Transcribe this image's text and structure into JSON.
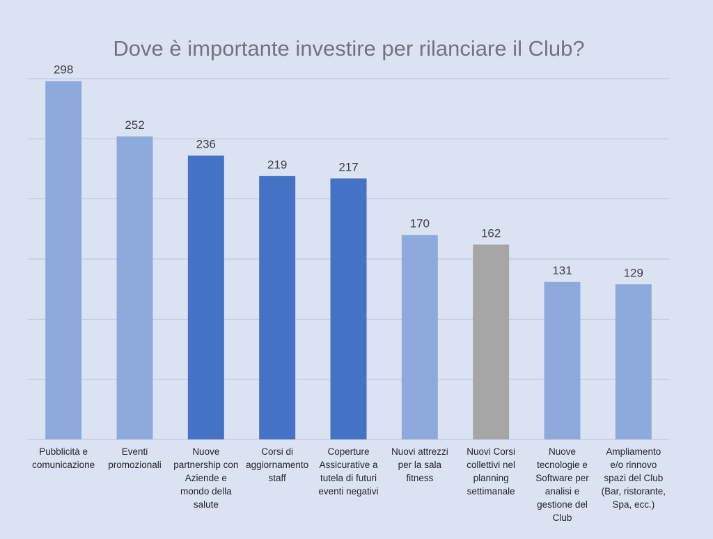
{
  "chart_data": {
    "type": "bar",
    "title": "Dove è importante investire per rilanciare il Club?",
    "xlabel": "",
    "ylabel": "",
    "ylim": [
      0,
      300
    ],
    "grid": true,
    "categories": [
      [
        "Pubblicità e",
        "comunicazione"
      ],
      [
        "Eventi",
        "promozionali"
      ],
      [
        "Nuove",
        "partnership con",
        "Aziende e",
        "mondo della",
        "salute"
      ],
      [
        "Corsi di",
        "aggiornamento",
        "staff"
      ],
      [
        "Coperture",
        "Assicurative a",
        "tutela di futuri",
        "eventi negativi"
      ],
      [
        "Nuovi attrezzi",
        "per la sala",
        "fitness"
      ],
      [
        "Nuovi Corsi",
        "collettivi nel",
        "planning",
        "settimanale"
      ],
      [
        "Nuove",
        "tecnologie e",
        "Software per",
        "analisi e",
        "gestione  del",
        "Club"
      ],
      [
        "Ampliamento",
        "e/o rinnovo",
        "spazi del Club",
        "(Bar, ristorante,",
        "Spa, ecc.)"
      ]
    ],
    "values": [
      298,
      252,
      236,
      219,
      217,
      170,
      162,
      131,
      129
    ],
    "colors": [
      "#8eaadc",
      "#8eaadc",
      "#4472c4",
      "#4472c4",
      "#4472c4",
      "#8eaadc",
      "#a6a6a6",
      "#8eaadc",
      "#8eaadc"
    ]
  }
}
